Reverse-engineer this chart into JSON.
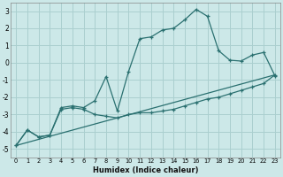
{
  "xlabel": "Humidex (Indice chaleur)",
  "background_color": "#cce8e8",
  "grid_color": "#aacfcf",
  "line_color": "#2a7070",
  "xlim": [
    -0.5,
    23.5
  ],
  "ylim": [
    -5.5,
    3.5
  ],
  "yticks": [
    -5,
    -4,
    -3,
    -2,
    -1,
    0,
    1,
    2,
    3
  ],
  "x_ticks": [
    0,
    1,
    2,
    3,
    4,
    5,
    6,
    7,
    8,
    9,
    10,
    11,
    12,
    13,
    14,
    15,
    16,
    17,
    18,
    19,
    20,
    21,
    22,
    23
  ],
  "series1_x": [
    0,
    1,
    2,
    3,
    4,
    5,
    6,
    7,
    8,
    9,
    10,
    11,
    12,
    13,
    14,
    15,
    16,
    17,
    18,
    19,
    20,
    21,
    22,
    23
  ],
  "series1_y": [
    -4.8,
    -3.9,
    -4.3,
    -4.2,
    -2.6,
    -2.5,
    -2.6,
    -2.2,
    -0.8,
    -2.8,
    -0.5,
    1.4,
    1.5,
    1.9,
    2.0,
    2.5,
    3.1,
    2.7,
    0.7,
    0.15,
    0.1,
    0.45,
    0.6,
    -0.75
  ],
  "series2_x": [
    0,
    1,
    2,
    3,
    4,
    5,
    6,
    7,
    8,
    9,
    10,
    11,
    12,
    13,
    14,
    15,
    16,
    17,
    18,
    19,
    20,
    21,
    22,
    23
  ],
  "series2_y": [
    -4.8,
    -3.9,
    -4.3,
    -4.2,
    -2.7,
    -2.6,
    -2.7,
    -3.0,
    -3.1,
    -3.2,
    -3.0,
    -2.9,
    -2.9,
    -2.8,
    -2.7,
    -2.5,
    -2.3,
    -2.1,
    -2.0,
    -1.8,
    -1.6,
    -1.4,
    -1.2,
    -0.7
  ],
  "series3_x": [
    0,
    23
  ],
  "series3_y": [
    -4.8,
    -0.7
  ]
}
